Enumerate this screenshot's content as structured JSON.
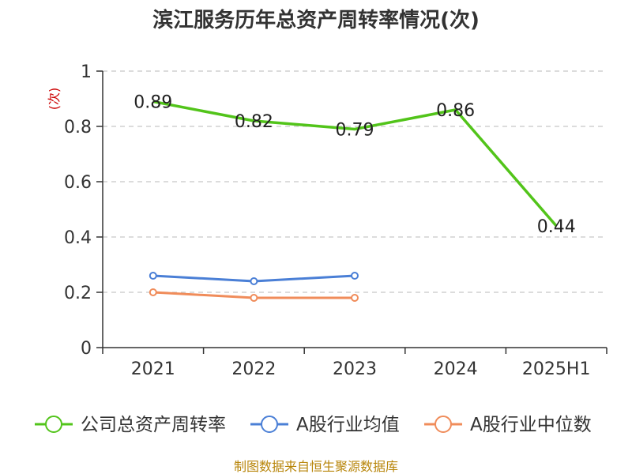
{
  "chart_data": {
    "type": "line",
    "title": "滨江服务历年总资产周转率情况(次)",
    "ylabel": "(次)",
    "xlabel": "",
    "categories": [
      "2021",
      "2022",
      "2023",
      "2024",
      "2025H1"
    ],
    "ylim": [
      0,
      1
    ],
    "yticks": [
      "0",
      "0.2",
      "0.4",
      "0.6",
      "0.8",
      "1"
    ],
    "grid": true,
    "legend_position": "bottom",
    "series": [
      {
        "name": "公司总资产周转率",
        "color": "#52c41a",
        "values": [
          0.89,
          0.82,
          0.79,
          0.86,
          0.44
        ],
        "labels": [
          "0.89",
          "0.82",
          "0.79",
          "0.86",
          "0.44"
        ]
      },
      {
        "name": "A股行业均值",
        "color": "#4a7fd6",
        "values": [
          0.26,
          0.24,
          0.26,
          null,
          null
        ]
      },
      {
        "name": "A股行业中位数",
        "color": "#f08c5a",
        "values": [
          0.2,
          0.18,
          0.18,
          null,
          null
        ]
      }
    ]
  },
  "source_text": "制图数据来自恒生聚源数据库"
}
